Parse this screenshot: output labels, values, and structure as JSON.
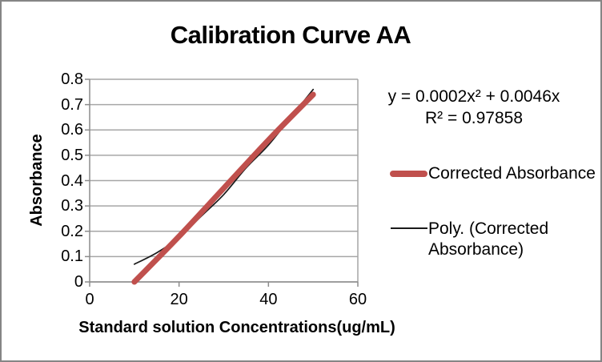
{
  "window": {
    "background": "#ffffff",
    "border_color": "#858585"
  },
  "chart_data": {
    "type": "line",
    "title": "Calibration Curve AA",
    "xlabel": "Standard solution Concentrations(ug/mL)",
    "ylabel": "Absorbance",
    "xlim": [
      0,
      60
    ],
    "ylim": [
      0,
      0.8
    ],
    "x_ticks": [
      "0",
      "20",
      "40",
      "60"
    ],
    "x_tick_values": [
      0,
      20,
      40,
      60
    ],
    "y_ticks": [
      "0",
      "0.1",
      "0.2",
      "0.3",
      "0.4",
      "0.5",
      "0.6",
      "0.7",
      "0.8"
    ],
    "y_tick_values": [
      0,
      0.1,
      0.2,
      0.3,
      0.4,
      0.5,
      0.6,
      0.7,
      0.8
    ],
    "grid": true,
    "gridline_color": "#a6a6a6",
    "axis_color": "#8c8c8c",
    "legend_position": "right",
    "annotation": {
      "equation": "y = 0.0002x² + 0.0046x",
      "r_squared": "R² = 0.97858"
    },
    "series": [
      {
        "name": "Corrected Absorbance",
        "color": "#c0504d",
        "style": "smooth-thick",
        "stroke_width": 7,
        "x": [
          10,
          20,
          30,
          40,
          50
        ],
        "values": [
          0.0,
          0.18,
          0.37,
          0.56,
          0.74
        ]
      },
      {
        "name": "Poly. (Corrected Absorbance)",
        "color": "#1a1a1a",
        "style": "trendline-thin",
        "stroke_width": 1.7,
        "x": [
          10,
          15,
          20,
          25,
          30,
          35,
          40,
          45,
          50
        ],
        "values": [
          0.07,
          0.115,
          0.175,
          0.26,
          0.345,
          0.45,
          0.54,
          0.65,
          0.76
        ]
      }
    ]
  },
  "legend": {
    "item1_label": "Corrected Absorbance",
    "item2_label": "Poly. (Corrected Absorbance)"
  }
}
